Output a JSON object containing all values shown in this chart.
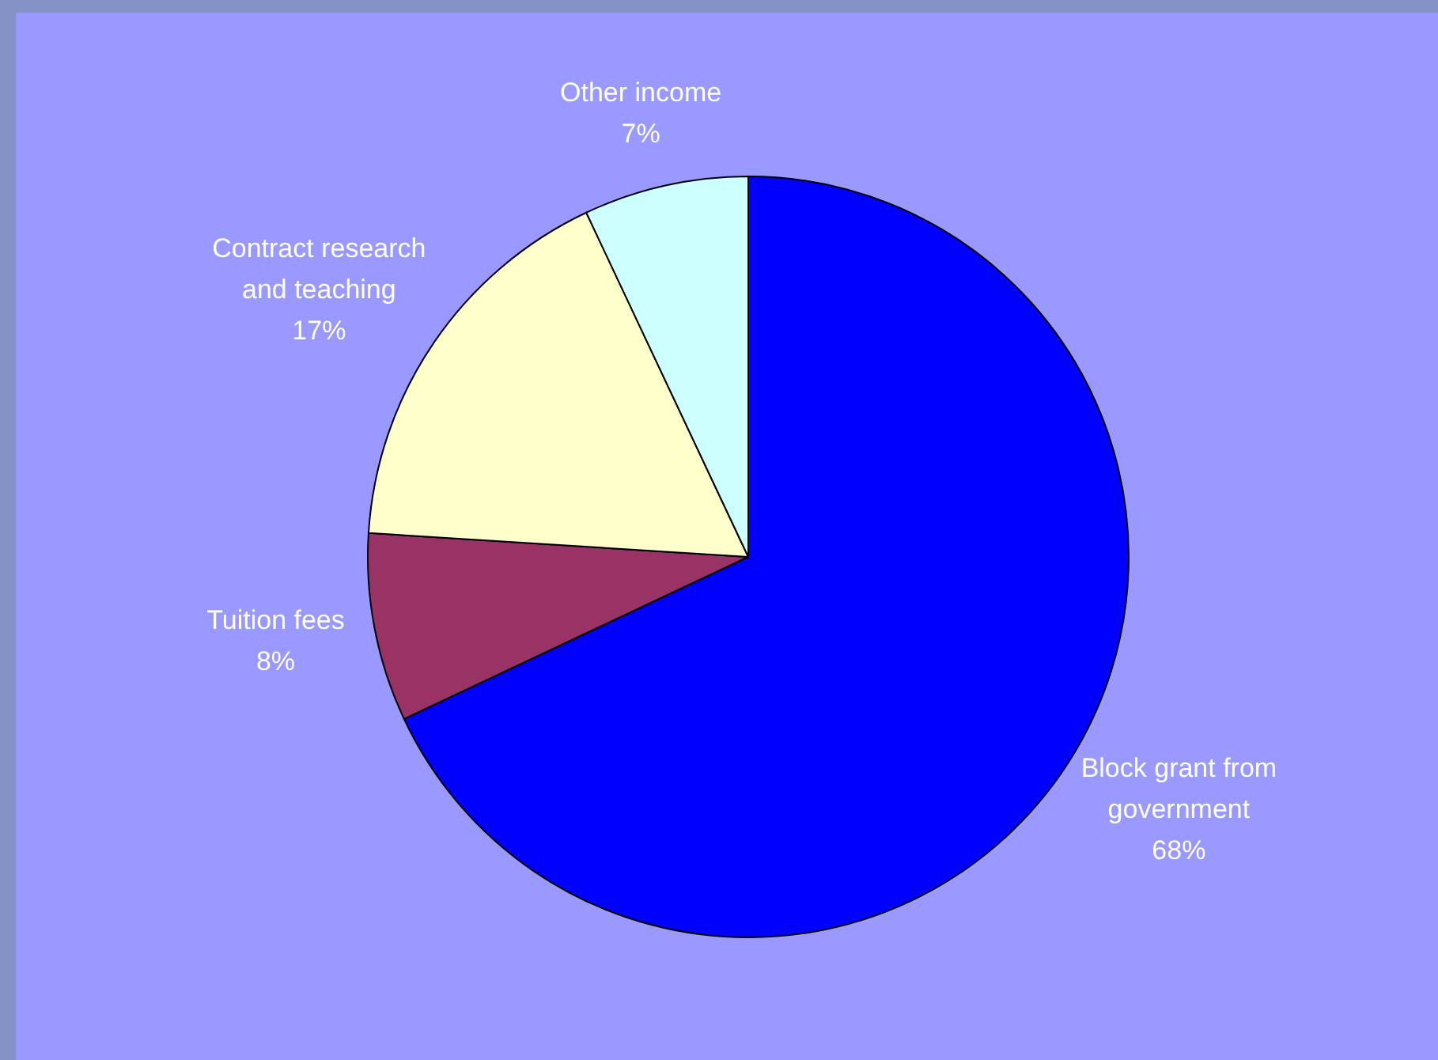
{
  "chart_data": {
    "type": "pie",
    "categories": [
      "Block grant from government",
      "Tuition fees",
      "Contract research and teaching",
      "Other income"
    ],
    "values": [
      68,
      8,
      17,
      7
    ],
    "colors": [
      "#0000ff",
      "#993366",
      "#ffffcc",
      "#ccffff"
    ],
    "value_labels": [
      "68%",
      "8%",
      "17%",
      "7%"
    ],
    "legend": false
  }
}
